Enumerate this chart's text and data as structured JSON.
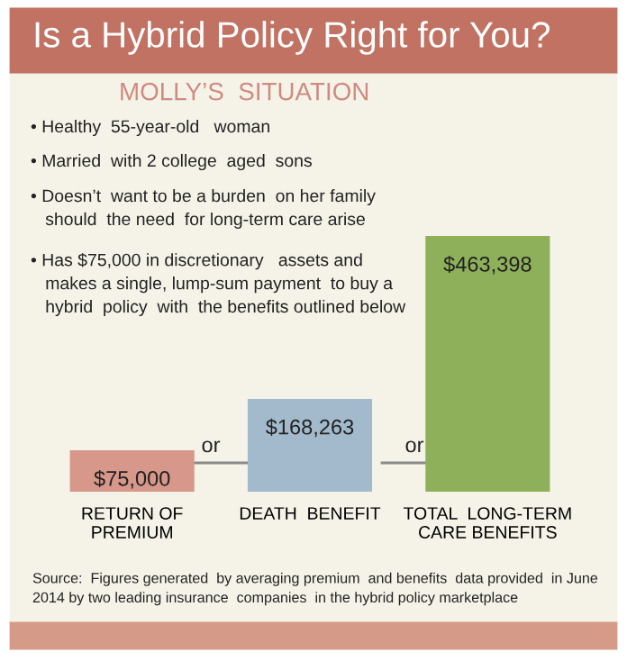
{
  "chart_data": {
    "type": "bar",
    "title": "Is a Hybrid Policy Right for You?",
    "subtitle": "MOLLY’S  SITUATION",
    "categories": [
      "RETURN OF\nPREMIUM",
      "DEATH  BENEFIT",
      "TOTAL  LONG-TERM\nCARE BENEFITS"
    ],
    "values": [
      75000,
      168263,
      463398
    ],
    "colors": [
      "#d7978a",
      "#a3bacd",
      "#8fb05a"
    ],
    "value_labels": [
      "$75,000",
      "$168,263",
      "$463,398"
    ],
    "annotations": [
      "• Healthy  55-year-old   woman",
      "• Married  with 2 college  aged  sons",
      "• Doesn’t  want to be a burden  on her family\n   should  the need  for long-term care arise",
      "• Has $75,000 in discretionary   assets and\n   makes a single, lump-sum payment  to buy a\n   hybrid  policy  with  the benefits outlined below",
      "or",
      "or",
      "Source:  Figures generated  by averaging premium  and benefits  data provided  in June\n2014 by two leading insurance  companies  in the hybrid policy marketplace"
    ]
  }
}
